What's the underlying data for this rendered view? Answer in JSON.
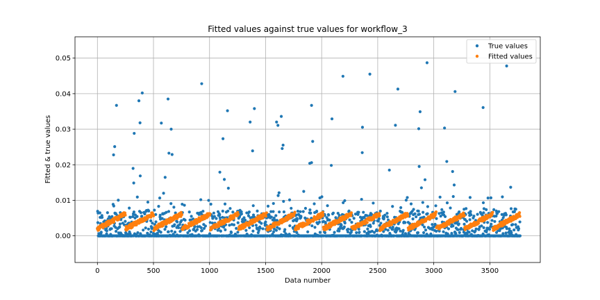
{
  "chart_data": {
    "type": "scatter",
    "title": "Fitted values against true values for workflow_3",
    "xlabel": "Data number",
    "ylabel": "Fitted & true values",
    "xlim": [
      -200,
      3950
    ],
    "ylim": [
      -0.0075,
      0.056
    ],
    "xticks": [
      0,
      500,
      1000,
      1500,
      2000,
      2500,
      3000,
      3500
    ],
    "xtick_labels": [
      "0",
      "500",
      "1000",
      "1500",
      "2000",
      "2500",
      "3000",
      "3500"
    ],
    "yticks": [
      0.0,
      0.01,
      0.02,
      0.03,
      0.04,
      0.05
    ],
    "ytick_labels": [
      "0.00",
      "0.01",
      "0.02",
      "0.03",
      "0.04",
      "0.05"
    ],
    "grid": true,
    "legend_position": "top-right",
    "n_points": 3771,
    "cycle_length": 252,
    "series": [
      {
        "name": "True values",
        "color": "#1f77b4",
        "baseline_value": 0.0,
        "peak_values": [
          [
            170,
            0.0367
          ],
          [
            400,
            0.0402
          ],
          [
            370,
            0.038
          ],
          [
            630,
            0.0385
          ],
          [
            930,
            0.0428
          ],
          [
            1160,
            0.0352
          ],
          [
            1400,
            0.0358
          ],
          [
            1640,
            0.0336
          ],
          [
            1910,
            0.0367
          ],
          [
            2190,
            0.0449
          ],
          [
            2430,
            0.0455
          ],
          [
            2680,
            0.0413
          ],
          [
            2940,
            0.0487
          ],
          [
            3190,
            0.0406
          ],
          [
            3440,
            0.0361
          ],
          [
            3650,
            0.0478
          ]
        ]
      },
      {
        "name": "Fitted values",
        "color": "#ff7f0e",
        "cycle_start_value": 0.002,
        "cycle_end_value": 0.0062
      }
    ]
  }
}
